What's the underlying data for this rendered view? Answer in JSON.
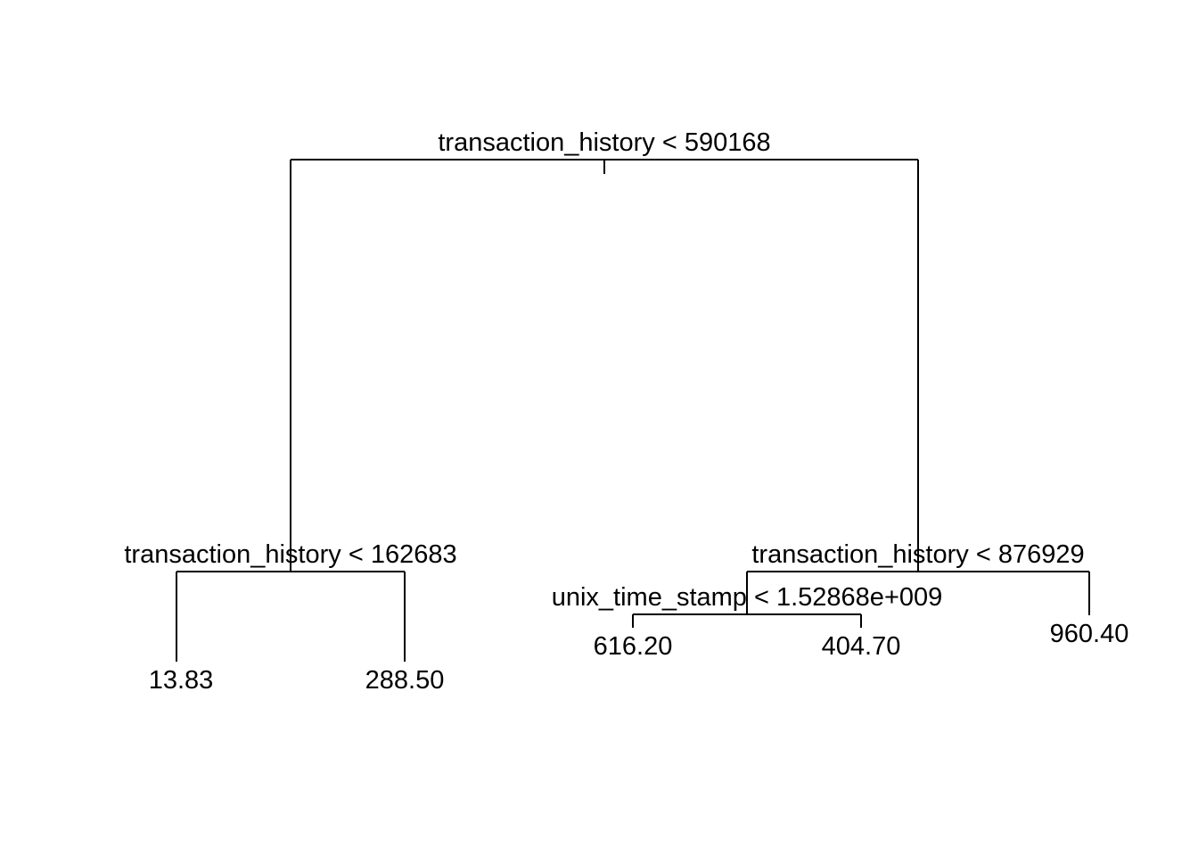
{
  "tree": {
    "line_color": "#000000",
    "background": "#ffffff",
    "splits": {
      "root": "transaction_history < 590168",
      "left": "transaction_history < 162683",
      "right": "transaction_history < 876929",
      "right_left": "unix_time_stamp < 1.52868e+009"
    },
    "leaves": {
      "ll": "13.83",
      "lr": "288.50",
      "rll": "616.20",
      "rlr": "404.70",
      "rr": "960.40"
    }
  }
}
